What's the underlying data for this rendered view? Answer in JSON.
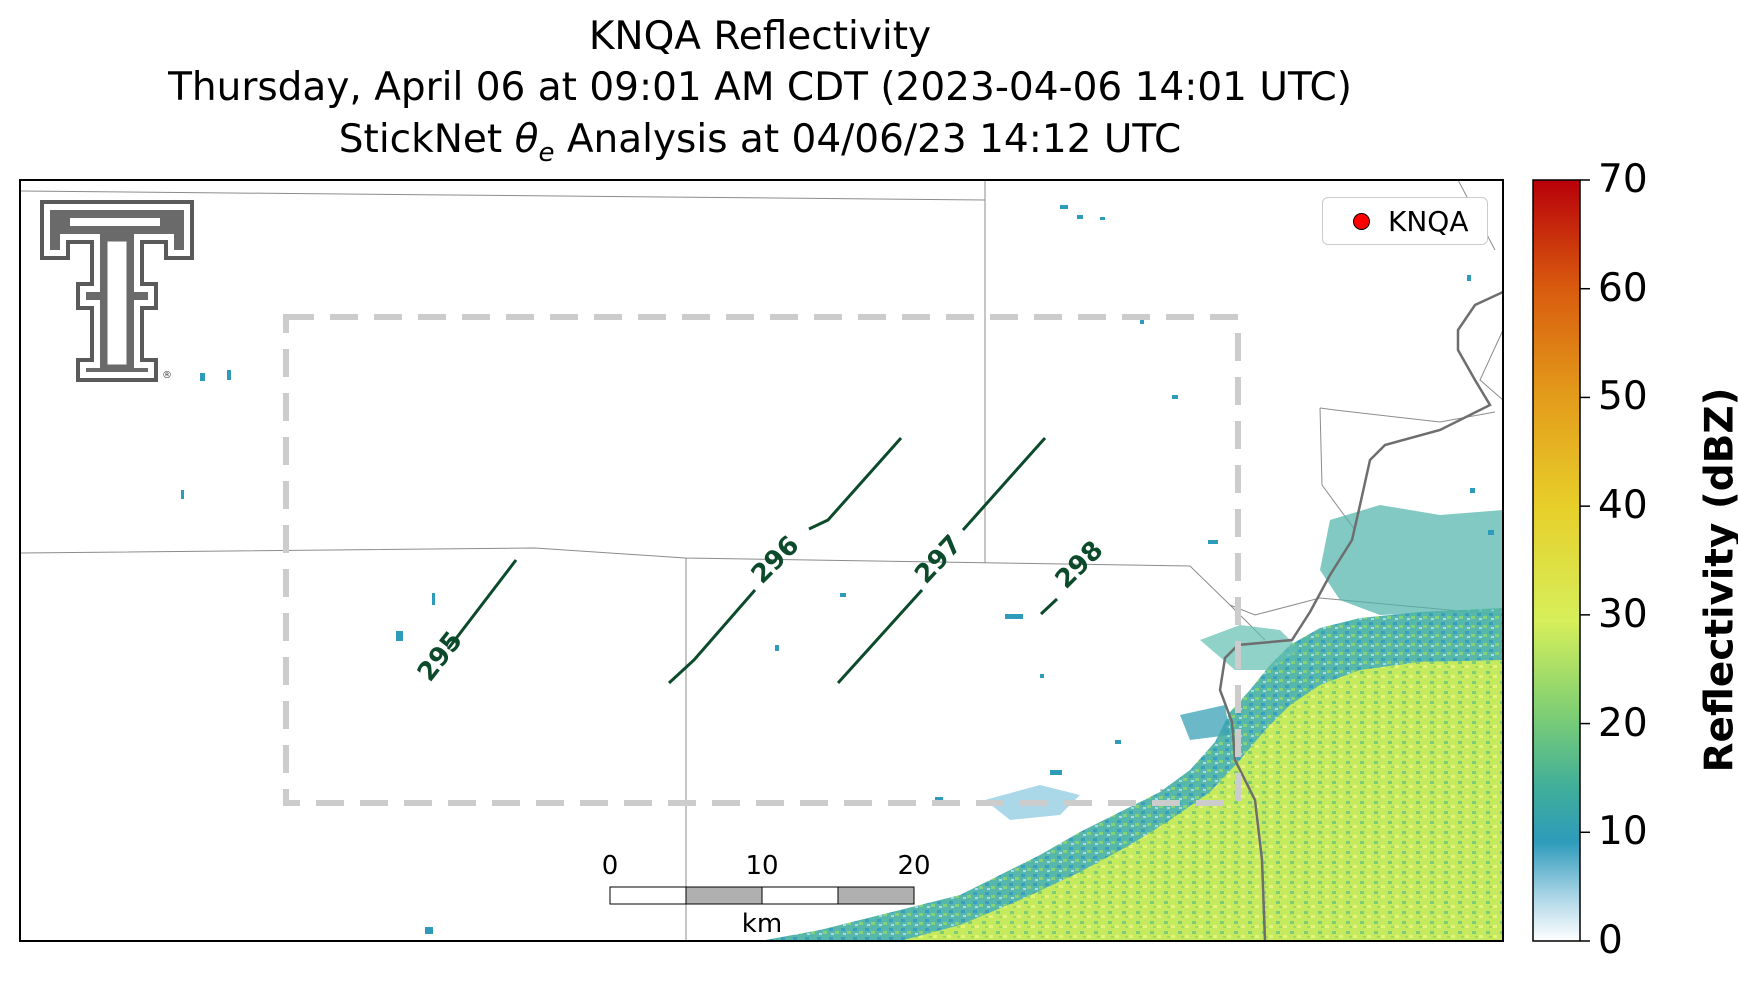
{
  "title": {
    "line1": "KNQA Reflectivity",
    "line2": "Thursday, April 06 at 09:01 AM CDT (2023-04-06 14:01 UTC)",
    "line3_prefix": "StickNet ",
    "line3_theta": "θ",
    "line3_sub": "e",
    "line3_suffix": " Analysis at 04/06/23 14:12 UTC"
  },
  "legend": {
    "label": "KNQA",
    "marker_color": "#ff0000"
  },
  "colorbar": {
    "label": "Reflectivity (dBZ)",
    "ticks": [
      "0",
      "10",
      "20",
      "30",
      "40",
      "50",
      "60",
      "70"
    ],
    "range": [
      0,
      70
    ],
    "colors": [
      "#ffffff",
      "#a9d4e6",
      "#2e9bbb",
      "#3fae9a",
      "#7fcf73",
      "#d6ef5a",
      "#e7cf2a",
      "#e39a1a",
      "#d85a0e",
      "#b8000a"
    ]
  },
  "contours": [
    {
      "label": "295"
    },
    {
      "label": "296"
    },
    {
      "label": "297"
    },
    {
      "label": "298"
    }
  ],
  "scalebar": {
    "ticks": [
      "0",
      "10",
      "20"
    ],
    "unit": "km"
  },
  "logo": {
    "icon": "texas-tech-double-t-logo",
    "mark": "®"
  },
  "analysis_domain": {
    "style": "dashed",
    "color": "#cccccc"
  }
}
